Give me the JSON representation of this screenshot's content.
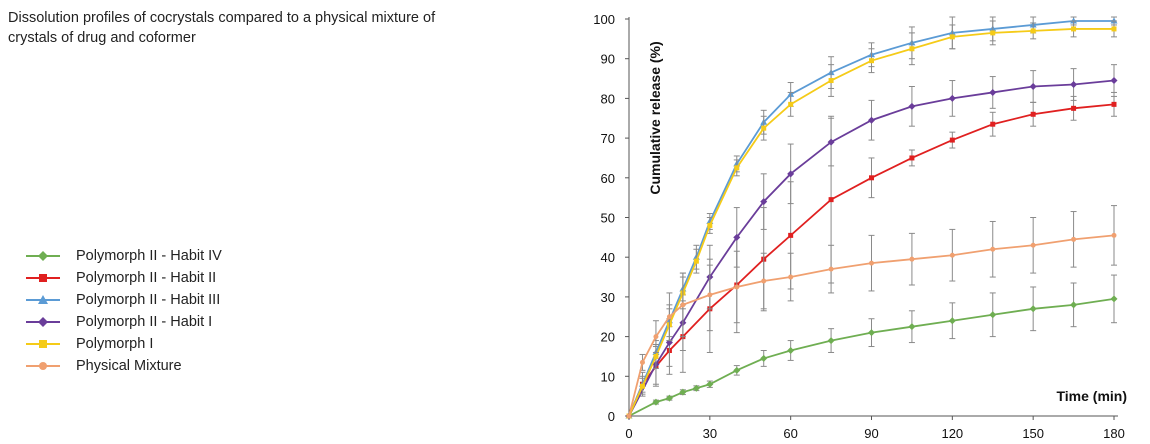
{
  "caption": "Dissolution profiles of cocrystals compared to a physical mixture of crystals of drug and coformer",
  "chart_data": {
    "type": "line",
    "title": "",
    "xlabel": "Time (min)",
    "ylabel": "Cumulative release (%)",
    "xlim": [
      0,
      180
    ],
    "ylim": [
      0,
      100
    ],
    "xticks": [
      0,
      30,
      60,
      90,
      120,
      150,
      180
    ],
    "yticks": [
      0,
      10,
      20,
      30,
      40,
      50,
      60,
      70,
      80,
      90,
      100
    ],
    "grid": false,
    "legend_position": "left",
    "series": [
      {
        "name": "Polymorph II - Habit IV",
        "color": "#6fae52",
        "marker": "diamond",
        "x": [
          0,
          10,
          15,
          20,
          25,
          30,
          40,
          50,
          60,
          75,
          90,
          105,
          120,
          135,
          150,
          165,
          180
        ],
        "y": [
          0,
          3.5,
          4.5,
          6,
          7,
          8,
          11.5,
          14.5,
          16.5,
          19,
          21,
          22.5,
          24,
          25.5,
          27,
          28,
          29.5
        ],
        "err": [
          0,
          0.5,
          0.5,
          0.6,
          0.6,
          0.8,
          1.2,
          2,
          2.5,
          3,
          3.5,
          4,
          4.5,
          5.5,
          5.5,
          5.5,
          6
        ]
      },
      {
        "name": "Polymorph II - Habit II",
        "color": "#e02020",
        "marker": "square",
        "x": [
          0,
          5,
          10,
          15,
          20,
          30,
          40,
          50,
          60,
          75,
          90,
          105,
          120,
          135,
          150,
          165,
          180
        ],
        "y": [
          0,
          8,
          12.5,
          16.5,
          20,
          27,
          33,
          39.5,
          45.5,
          54.5,
          60,
          65,
          69.5,
          73.5,
          76,
          77.5,
          78.5
        ],
        "err": [
          0,
          3,
          5,
          6,
          9,
          11,
          12,
          13,
          13.5,
          21,
          5,
          2,
          2,
          3,
          3,
          3,
          3
        ]
      },
      {
        "name": "Polymorph II - Habit III",
        "color": "#5b9bd5",
        "marker": "triangle",
        "x": [
          0,
          5,
          10,
          15,
          20,
          25,
          30,
          40,
          50,
          60,
          75,
          90,
          105,
          120,
          135,
          150,
          165,
          180
        ],
        "y": [
          0,
          8,
          16,
          24,
          32,
          40,
          49,
          63.5,
          74,
          81,
          86.5,
          91,
          94,
          96.5,
          97.5,
          98.5,
          99.5,
          99.5
        ],
        "err": [
          0,
          2,
          3,
          4,
          4,
          3,
          2,
          2,
          3,
          3,
          4,
          3,
          4,
          4,
          3,
          2,
          1,
          1
        ]
      },
      {
        "name": "Polymorph II - Habit I",
        "color": "#6a3d9a",
        "marker": "diamond",
        "x": [
          0,
          10,
          15,
          20,
          30,
          40,
          50,
          60,
          75,
          90,
          105,
          120,
          135,
          150,
          165,
          180
        ],
        "y": [
          0,
          13,
          18.5,
          23.5,
          35,
          45,
          54,
          61,
          69,
          74.5,
          78,
          80,
          81.5,
          83,
          83.5,
          84.5
        ],
        "err": [
          0,
          5,
          6,
          7,
          8,
          7.5,
          7,
          7.5,
          6,
          5,
          5,
          4.5,
          4,
          4,
          4,
          4
        ]
      },
      {
        "name": "Polymorph I",
        "color": "#f5cb18",
        "marker": "square",
        "x": [
          0,
          5,
          10,
          15,
          20,
          25,
          30,
          40,
          50,
          60,
          75,
          90,
          105,
          120,
          135,
          150,
          165,
          180
        ],
        "y": [
          0,
          7.5,
          15,
          23,
          31,
          39,
          48,
          62.5,
          72.5,
          78.5,
          84.5,
          89.5,
          92.5,
          95.5,
          96.5,
          97,
          97.5,
          97.5
        ],
        "err": [
          0,
          2,
          3,
          4,
          4,
          3,
          2,
          2,
          3,
          3,
          4,
          3,
          4,
          3,
          3,
          2,
          2,
          2
        ]
      },
      {
        "name": "Physical Mixture",
        "color": "#f0a070",
        "marker": "circle",
        "x": [
          0,
          5,
          10,
          15,
          20,
          30,
          40,
          50,
          60,
          75,
          90,
          105,
          120,
          135,
          150,
          165,
          180
        ],
        "y": [
          0,
          13.5,
          20,
          25,
          28,
          30.5,
          32.5,
          34,
          35,
          37,
          38.5,
          39.5,
          40.5,
          42,
          43,
          44.5,
          45.5
        ],
        "err": [
          0,
          2,
          4,
          6,
          8,
          9,
          9,
          7,
          6,
          6,
          7,
          6.5,
          6.5,
          7,
          7,
          7,
          7.5
        ]
      }
    ]
  }
}
